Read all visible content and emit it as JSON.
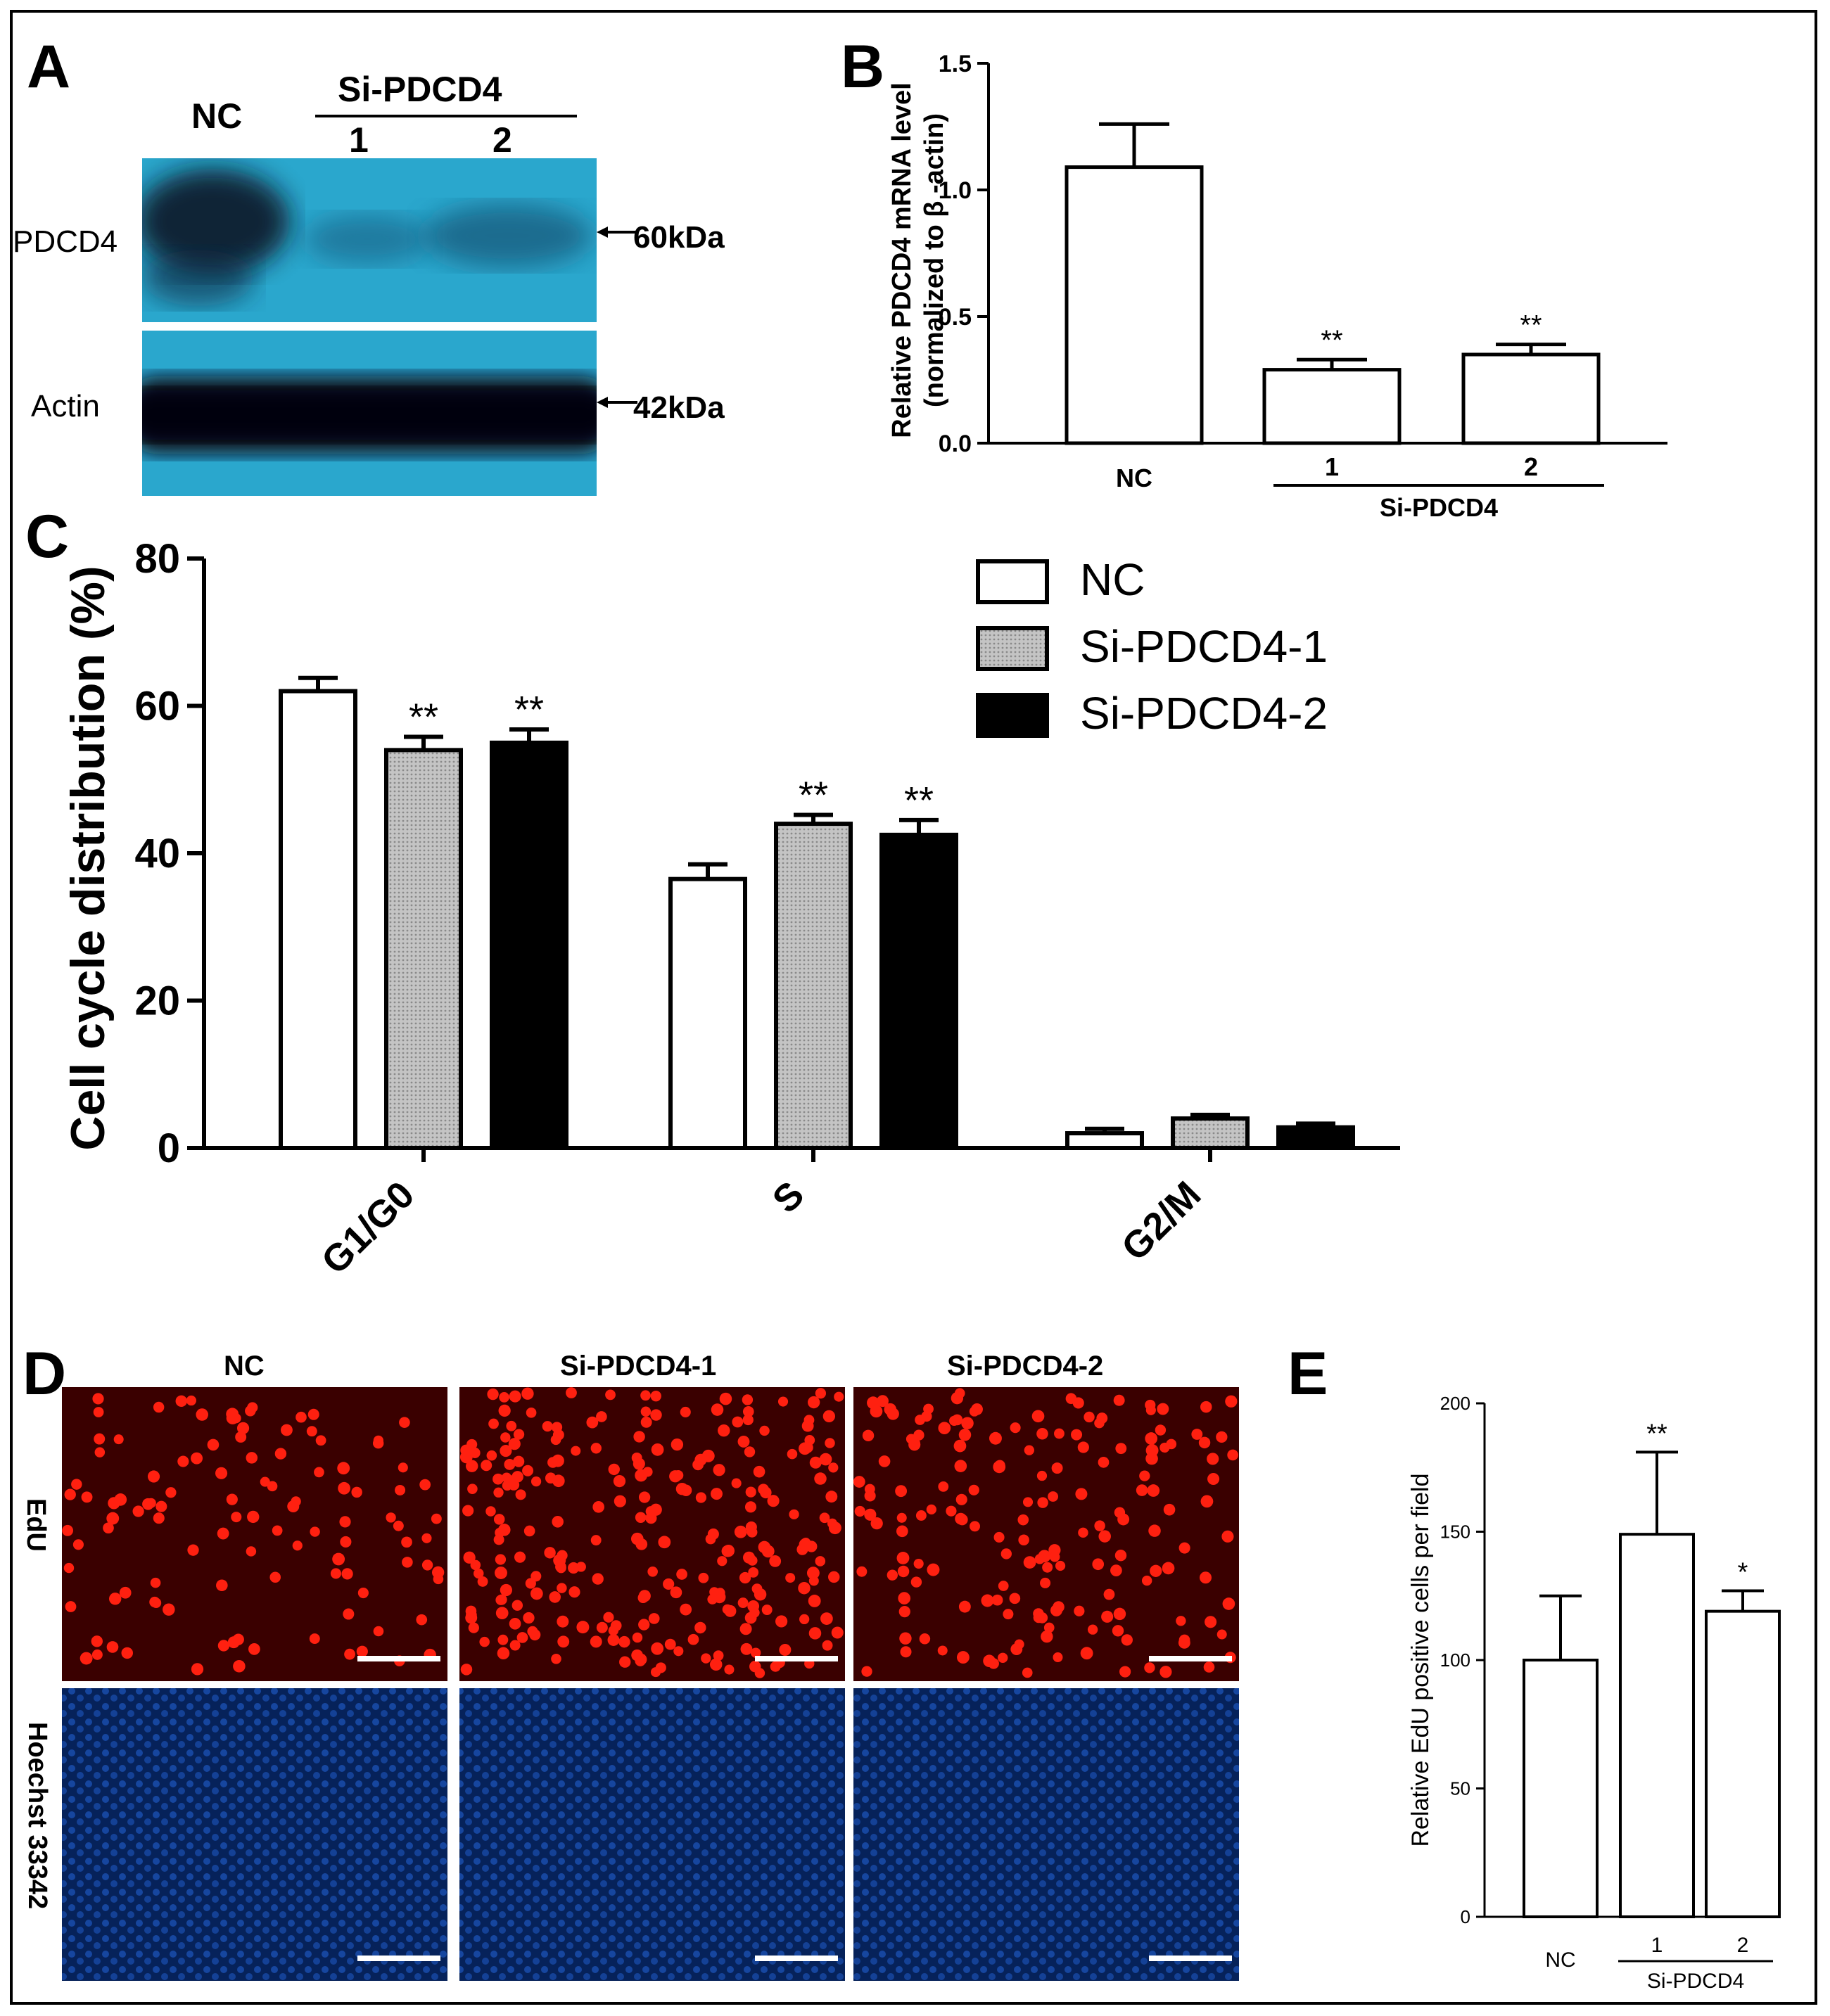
{
  "panels": {
    "a": "A",
    "b": "B",
    "c": "C",
    "d": "D",
    "e": "E"
  },
  "blot": {
    "lane_nc": "NC",
    "group": "Si-PDCD4",
    "lane_1": "1",
    "lane_2": "2",
    "row_pdcd4": "PDCD4",
    "row_actin": "Actin",
    "marker_60": "60kDa",
    "marker_42": "42kDa",
    "colors": {
      "membrane": "#2aa7cd",
      "band": "#0a0f1c"
    }
  },
  "micro": {
    "col_nc": "NC",
    "col_si1": "Si-PDCD4-1",
    "col_si2": "Si-PDCD4-2",
    "row_edu": "EdU",
    "row_hoechst": "Hoechst 33342",
    "colors": {
      "edu_bg": "#3a0000",
      "edu_nucleus": "#ff2010",
      "hoechst_bg": "#06225a",
      "hoechst_nucleus": "#1a4fb0"
    }
  },
  "chart_data": [
    {
      "id": "B",
      "type": "bar",
      "ylabel_line1": "Relative PDCD4 mRNA level",
      "ylabel_line2": "(normalized to β -actin)",
      "ylim": [
        0,
        1.5
      ],
      "yticks": [
        "0.0",
        "0.5",
        "1.0",
        "1.5"
      ],
      "categories": [
        "NC",
        "1",
        "2"
      ],
      "group_label": "Si-PDCD4",
      "values": [
        1.09,
        0.29,
        0.35
      ],
      "errors": [
        0.17,
        0.04,
        0.04
      ],
      "significance": [
        "",
        "**",
        "**"
      ]
    },
    {
      "id": "C",
      "type": "bar",
      "ylabel": "Cell cycle distribution (%)",
      "ylim": [
        0,
        80
      ],
      "yticks": [
        "0",
        "20",
        "40",
        "60",
        "80"
      ],
      "categories": [
        "G1/G0",
        "S",
        "G2/M"
      ],
      "legend_position": "top-right",
      "series": [
        {
          "name": "NC",
          "color": "#ffffff",
          "values": [
            62,
            36.5,
            2
          ],
          "errors": [
            1.8,
            2,
            0.6
          ],
          "significance": [
            "",
            "",
            ""
          ]
        },
        {
          "name": "Si-PDCD4-1",
          "color": "#bdbdbd",
          "values": [
            54,
            44,
            4
          ],
          "errors": [
            1.8,
            1.2,
            0.5
          ],
          "significance": [
            "**",
            "**",
            ""
          ]
        },
        {
          "name": "Si-PDCD4-2",
          "color": "#000000",
          "values": [
            55,
            42.5,
            2.8
          ],
          "errors": [
            1.8,
            2,
            0.5
          ],
          "significance": [
            "**",
            "**",
            ""
          ]
        }
      ]
    },
    {
      "id": "E",
      "type": "bar",
      "ylabel": "Relative EdU positive cells per field",
      "ylim": [
        0,
        200
      ],
      "yticks": [
        "0",
        "50",
        "100",
        "150",
        "200"
      ],
      "categories": [
        "NC",
        "1",
        "2"
      ],
      "group_label": "Si-PDCD4",
      "values": [
        100,
        149,
        119
      ],
      "errors": [
        25,
        32,
        8
      ],
      "significance": [
        "",
        "**",
        "*"
      ]
    }
  ]
}
